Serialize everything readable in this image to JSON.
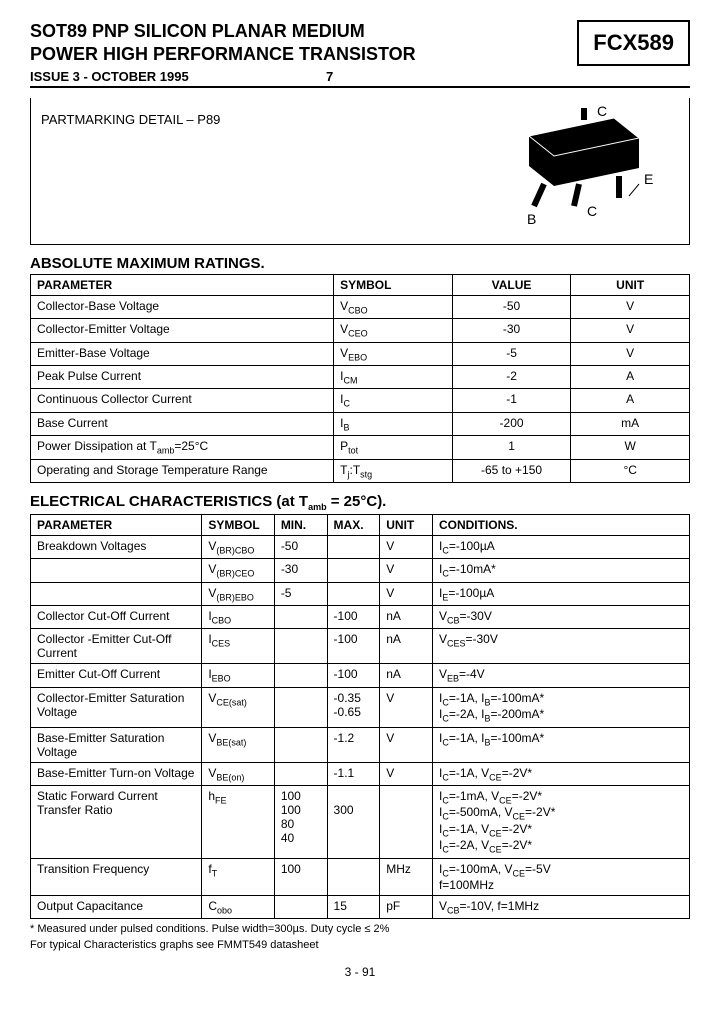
{
  "header": {
    "title_line1": "SOT89 PNP SILICON PLANAR MEDIUM",
    "title_line2": "POWER HIGH PERFORMANCE TRANSISTOR",
    "part_number": "FCX589",
    "issue": "ISSUE 3 - OCTOBER 1995",
    "issue_extra": "7",
    "part_marking_label": "PARTMARKING DETAIL –   P89"
  },
  "package_diagram": {
    "pins": {
      "C_top": "C",
      "E": "E",
      "C_mid": "C",
      "B": "B"
    },
    "body_color": "#000000",
    "lead_stroke": "#000000",
    "text_color": "#000000",
    "font_size": 14
  },
  "amr": {
    "section_title": "ABSOLUTE MAXIMUM RATINGS.",
    "columns": [
      "PARAMETER",
      "SYMBOL",
      "VALUE",
      "UNIT"
    ],
    "rows": [
      {
        "param": "Collector-Base Voltage",
        "symbol_html": "V<span class='sub'>CBO</span>",
        "value": "-50",
        "unit": "V"
      },
      {
        "param": "Collector-Emitter Voltage",
        "symbol_html": "V<span class='sub'>CEO</span>",
        "value": "-30",
        "unit": "V"
      },
      {
        "param": "Emitter-Base Voltage",
        "symbol_html": "V<span class='sub'>EBO</span>",
        "value": "-5",
        "unit": "V"
      },
      {
        "param": "Peak Pulse Current",
        "symbol_html": "I<span class='sub'>CM</span>",
        "value": "-2",
        "unit": "A"
      },
      {
        "param": "Continuous Collector Current",
        "symbol_html": "I<span class='sub'>C</span>",
        "value": "-1",
        "unit": "A"
      },
      {
        "param": "Base Current",
        "symbol_html": "I<span class='sub'>B</span>",
        "value": "-200",
        "unit": "mA"
      },
      {
        "param": "Power Dissipation at T<span class='sub'>amb</span>=25°C",
        "symbol_html": "P<span class='sub'>tot</span>",
        "value": "1",
        "unit": "W"
      },
      {
        "param": "Operating and Storage Temperature Range",
        "symbol_html": "T<span class='sub'>j</span>:T<span class='sub'>stg</span>",
        "value": "-65 to +150",
        "unit": "°C"
      }
    ]
  },
  "elec": {
    "section_title_html": "ELECTRICAL CHARACTERISTICS (at T<span class='sub'>amb</span> = 25°C).",
    "columns": [
      "PARAMETER",
      "SYMBOL",
      "MIN.",
      "MAX.",
      "UNIT",
      "CONDITIONS."
    ],
    "rows": [
      {
        "param": "Breakdown Voltages",
        "symbol": "V<span class='sub'>(BR)CBO</span>",
        "min": "-50",
        "max": "",
        "unit": "V",
        "cond": "I<span class='sub'>C</span>=-100µA"
      },
      {
        "param": "",
        "symbol": "V<span class='sub'>(BR)CEO</span>",
        "min": "-30",
        "max": "",
        "unit": "V",
        "cond": "I<span class='sub'>C</span>=-10mA*"
      },
      {
        "param": "",
        "symbol": "V<span class='sub'>(BR)EBO</span>",
        "min": "-5",
        "max": "",
        "unit": "V",
        "cond": "I<span class='sub'>E</span>=-100µA"
      },
      {
        "param": "Collector Cut-Off Current",
        "symbol": "I<span class='sub'>CBO</span>",
        "min": "",
        "max": "-100",
        "unit": "nA",
        "cond": "V<span class='sub'>CB</span>=-30V"
      },
      {
        "param": "Collector -Emitter Cut-Off Current",
        "symbol": "I<span class='sub'>CES</span>",
        "min": "",
        "max": "-100",
        "unit": "nA",
        "cond": "V<span class='sub'>CES</span>=-30V"
      },
      {
        "param": "Emitter Cut-Off Current",
        "symbol": "I<span class='sub'>EBO</span>",
        "min": "",
        "max": "-100",
        "unit": "nA",
        "cond": "V<span class='sub'>EB</span>=-4V"
      },
      {
        "param": "Collector-Emitter Saturation Voltage",
        "symbol": "V<span class='sub'>CE(sat)</span>",
        "min": "",
        "max": "-0.35<br>-0.65",
        "unit": "V",
        "cond": "I<span class='sub'>C</span>=-1A, I<span class='sub'>B</span>=-100mA*<br>I<span class='sub'>C</span>=-2A, I<span class='sub'>B</span>=-200mA*"
      },
      {
        "param": "Base-Emitter Saturation Voltage",
        "symbol": "V<span class='sub'>BE(sat)</span>",
        "min": "",
        "max": "-1.2",
        "unit": "V",
        "cond": "I<span class='sub'>C</span>=-1A, I<span class='sub'>B</span>=-100mA*"
      },
      {
        "param": "Base-Emitter Turn-on Voltage",
        "symbol": "V<span class='sub'>BE(on)</span>",
        "min": "",
        "max": "-1.1",
        "unit": "V",
        "cond": "I<span class='sub'>C</span>=-1A, V<span class='sub'>CE</span>=-2V*"
      },
      {
        "param": "Static Forward Current Transfer Ratio",
        "symbol": "h<span class='sub'>FE</span>",
        "min": "100<br>100<br>80<br>40",
        "max": "<br>300",
        "unit": "",
        "cond": "I<span class='sub'>C</span>=-1mA, V<span class='sub'>CE</span>=-2V*<br>I<span class='sub'>C</span>=-500mA, V<span class='sub'>CE</span>=-2V*<br>I<span class='sub'>C</span>=-1A, V<span class='sub'>CE</span>=-2V*<br>I<span class='sub'>C</span>=-2A, V<span class='sub'>CE</span>=-2V*"
      },
      {
        "param": "Transition Frequency",
        "symbol": "f<span class='sub'>T</span>",
        "min": "100",
        "max": "",
        "unit": "MHz",
        "cond": "I<span class='sub'>C</span>=-100mA, V<span class='sub'>CE</span>=-5V<br>f=100MHz"
      },
      {
        "param": "Output Capacitance",
        "symbol": "C<span class='sub'>obo</span>",
        "min": "",
        "max": "15",
        "unit": "pF",
        "cond": "V<span class='sub'>CB</span>=-10V, f=1MHz"
      }
    ]
  },
  "footer": {
    "note1": "* Measured under pulsed conditions. Pulse width=300µs. Duty cycle ≤ 2%",
    "note2": "For typical Characteristics graphs see FMMT549 datasheet",
    "page": "3 - 91"
  }
}
